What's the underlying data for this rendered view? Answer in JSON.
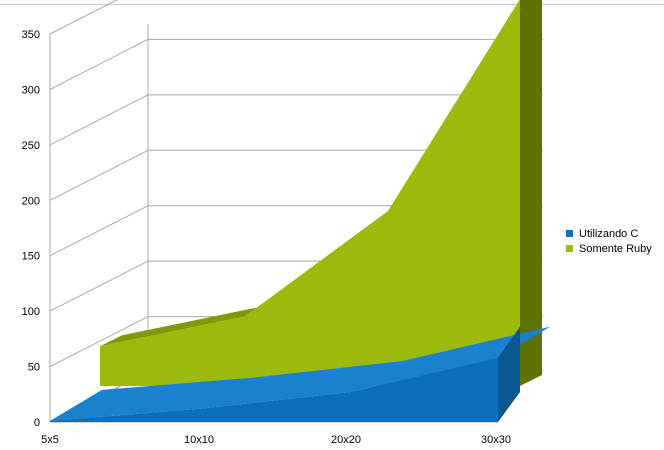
{
  "colors": {
    "c_front": "#0a6fbd",
    "c_top": "#1a80d0",
    "c_side": "#08578f",
    "ruby_front": "#9bba0c",
    "ruby_top": "#7f9a08",
    "ruby_side": "#5e7303",
    "grid": "#a8a8a8",
    "back_wall": "#ffffff"
  },
  "legend": {
    "items": [
      {
        "label": "Utilizando C",
        "color": "#0a6fbd"
      },
      {
        "label": "Somente Ruby",
        "color": "#9bba0c"
      }
    ]
  },
  "chart_data": {
    "type": "area",
    "style": "3d-stacked-area",
    "categories": [
      "5x5",
      "10x10",
      "20x20",
      "30x30"
    ],
    "series": [
      {
        "name": "Utilizando C",
        "values": [
          1,
          12,
          27,
          58
        ]
      },
      {
        "name": "Somente Ruby",
        "values": [
          34,
          61,
          156,
          347
        ]
      }
    ],
    "ylim": [
      0,
      350
    ],
    "yticks": [
      0,
      50,
      100,
      150,
      200,
      250,
      300,
      350
    ],
    "grid": true,
    "legend_position": "right"
  }
}
